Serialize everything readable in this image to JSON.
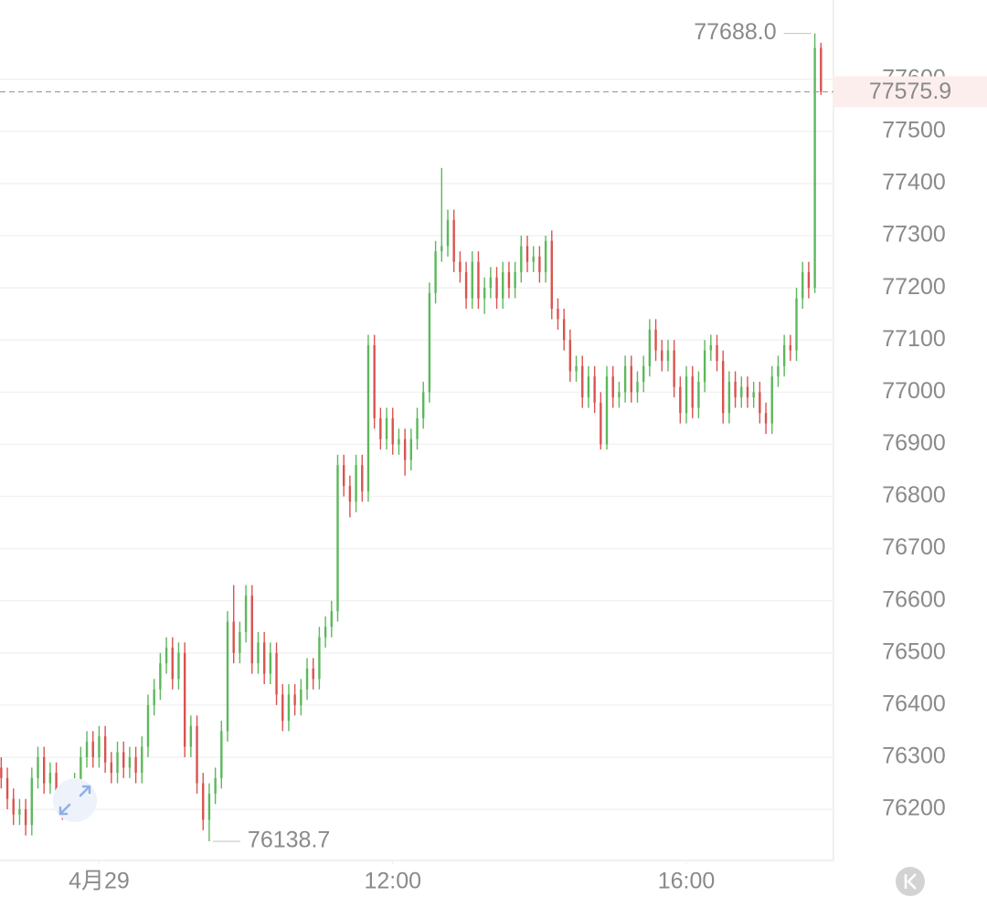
{
  "chart_data": {
    "type": "candlestick",
    "up_color": "#5cb85c",
    "down_color": "#d9534f",
    "grid": true,
    "ylim": [
      76102,
      77752
    ],
    "yticks": [
      76200,
      76300,
      76400,
      76500,
      76600,
      76700,
      76800,
      76900,
      77000,
      77100,
      77200,
      77300,
      77400,
      77500,
      77600
    ],
    "xlim": [
      -0.2,
      135
    ],
    "xticks": [
      {
        "value": 16,
        "label": "4月29"
      },
      {
        "value": 64,
        "label": "12:00"
      },
      {
        "value": 112,
        "label": "16:00"
      }
    ],
    "high_label": {
      "value": 77688,
      "label": "77688.0"
    },
    "low_label": 76138.7,
    "last_price": 77575.9,
    "open": [
      76280,
      76260,
      76220,
      76190,
      76200,
      76170,
      76260,
      76300,
      76250,
      76270,
      76220,
      76200,
      76230,
      76250,
      76300,
      76330,
      76300,
      76340,
      76290,
      76270,
      76310,
      76280,
      76300,
      76270,
      76320,
      76400,
      76430,
      76480,
      76510,
      76450,
      76500,
      76320,
      76360,
      76250,
      76180,
      76230,
      76260,
      76350,
      76560,
      76500,
      76540,
      76610,
      76480,
      76520,
      76460,
      76500,
      76420,
      76370,
      76420,
      76400,
      76430,
      76470,
      76450,
      76530,
      76550,
      76580,
      76860,
      76820,
      76790,
      76860,
      76810,
      77090,
      76950,
      76910,
      76950,
      76900,
      76910,
      76870,
      76910,
      76950,
      77000,
      77190,
      77270,
      77280,
      77330,
      77250,
      77230,
      77180,
      77250,
      77180,
      77200,
      77220,
      77180,
      77230,
      77200,
      77230,
      77280,
      77250,
      77260,
      77230,
      77290,
      77160,
      77140,
      77100,
      77040,
      77050,
      76990,
      77030,
      76980,
      76900,
      77030,
      76990,
      77000,
      77050,
      77000,
      77020,
      77050,
      77120,
      77080,
      77060,
      77080,
      77010,
      76960,
      77030,
      76970,
      77020,
      77080,
      77090,
      77060,
      76960,
      77020,
      76990,
      77010,
      76990,
      77000,
      76960,
      76940,
      77030,
      77050,
      77090,
      77080,
      77180,
      77230,
      77200,
      77660
    ],
    "high": [
      76300,
      76280,
      76240,
      76220,
      76220,
      76280,
      76320,
      76320,
      76290,
      76290,
      76240,
      76250,
      76270,
      76320,
      76350,
      76350,
      76360,
      76360,
      76310,
      76330,
      76330,
      76320,
      76320,
      76340,
      76420,
      76450,
      76500,
      76530,
      76530,
      76520,
      76520,
      76380,
      76380,
      76270,
      76250,
      76280,
      76370,
      76580,
      76630,
      76560,
      76630,
      76630,
      76540,
      76540,
      76520,
      76520,
      76440,
      76440,
      76440,
      76450,
      76490,
      76490,
      76550,
      76570,
      76600,
      76880,
      76880,
      76840,
      76880,
      76880,
      77110,
      77110,
      76970,
      76970,
      76970,
      76930,
      76930,
      76930,
      76970,
      77020,
      77210,
      77290,
      77430,
      77350,
      77350,
      77270,
      77250,
      77270,
      77270,
      77220,
      77240,
      77240,
      77250,
      77250,
      77250,
      77300,
      77300,
      77280,
      77280,
      77300,
      77310,
      77180,
      77160,
      77120,
      77070,
      77070,
      77050,
      77050,
      77000,
      77050,
      77050,
      77020,
      77070,
      77070,
      77040,
      77070,
      77140,
      77140,
      77100,
      77100,
      77100,
      77030,
      77050,
      77050,
      77040,
      77100,
      77110,
      77110,
      77080,
      77040,
      77040,
      77030,
      77030,
      77020,
      77020,
      76980,
      77050,
      77070,
      77110,
      77110,
      77200,
      77250,
      77250,
      77688,
      77670
    ],
    "low": [
      76240,
      76200,
      76170,
      76170,
      76150,
      76150,
      76240,
      76230,
      76230,
      76200,
      76180,
      76180,
      76210,
      76230,
      76280,
      76280,
      76280,
      76270,
      76250,
      76250,
      76260,
      76260,
      76250,
      76250,
      76300,
      76380,
      76410,
      76460,
      76430,
      76430,
      76300,
      76300,
      76230,
      76160,
      76138.7,
      76210,
      76240,
      76330,
      76480,
      76480,
      76520,
      76460,
      76460,
      76440,
      76440,
      76400,
      76350,
      76350,
      76380,
      76380,
      76410,
      76430,
      76430,
      76510,
      76530,
      76560,
      76800,
      76760,
      76770,
      76790,
      76790,
      76930,
      76890,
      76890,
      76880,
      76880,
      76840,
      76850,
      76890,
      76930,
      76980,
      77170,
      77250,
      77260,
      77230,
      77210,
      77160,
      77160,
      77160,
      77150,
      77180,
      77160,
      77160,
      77180,
      77180,
      77210,
      77230,
      77230,
      77210,
      77210,
      77140,
      77120,
      77080,
      77020,
      77020,
      76970,
      76970,
      76960,
      76890,
      76890,
      76970,
      76970,
      76980,
      76980,
      76980,
      77000,
      77030,
      77060,
      77040,
      77040,
      76990,
      76940,
      76940,
      76950,
      76950,
      77000,
      77060,
      77040,
      76940,
      76940,
      76970,
      76970,
      76970,
      76970,
      76940,
      76920,
      76920,
      77010,
      77030,
      77060,
      77060,
      77160,
      77180,
      77190,
      77570
    ],
    "close": [
      76260,
      76220,
      76190,
      76200,
      76170,
      76260,
      76300,
      76250,
      76270,
      76220,
      76200,
      76230,
      76250,
      76300,
      76330,
      76300,
      76340,
      76290,
      76270,
      76310,
      76280,
      76300,
      76270,
      76320,
      76400,
      76430,
      76480,
      76510,
      76450,
      76500,
      76320,
      76360,
      76250,
      76180,
      76230,
      76260,
      76350,
      76560,
      76500,
      76540,
      76610,
      76480,
      76520,
      76460,
      76500,
      76420,
      76370,
      76420,
      76400,
      76430,
      76470,
      76450,
      76530,
      76550,
      76580,
      76860,
      76820,
      76790,
      76860,
      76810,
      77090,
      76950,
      76910,
      76950,
      76900,
      76910,
      76870,
      76910,
      76950,
      77000,
      77190,
      77270,
      77280,
      77330,
      77250,
      77230,
      77180,
      77250,
      77180,
      77200,
      77220,
      77180,
      77230,
      77200,
      77230,
      77280,
      77250,
      77260,
      77230,
      77290,
      77160,
      77140,
      77100,
      77040,
      77050,
      76990,
      77030,
      76980,
      76900,
      77030,
      76990,
      77000,
      77050,
      77000,
      77020,
      77050,
      77120,
      77080,
      77060,
      77080,
      77010,
      76960,
      77030,
      76970,
      77020,
      77080,
      77090,
      77060,
      76960,
      77020,
      76990,
      77010,
      76990,
      77000,
      76960,
      76940,
      77030,
      77050,
      77090,
      77080,
      77180,
      77230,
      77200,
      77660,
      77575.9
    ]
  }
}
